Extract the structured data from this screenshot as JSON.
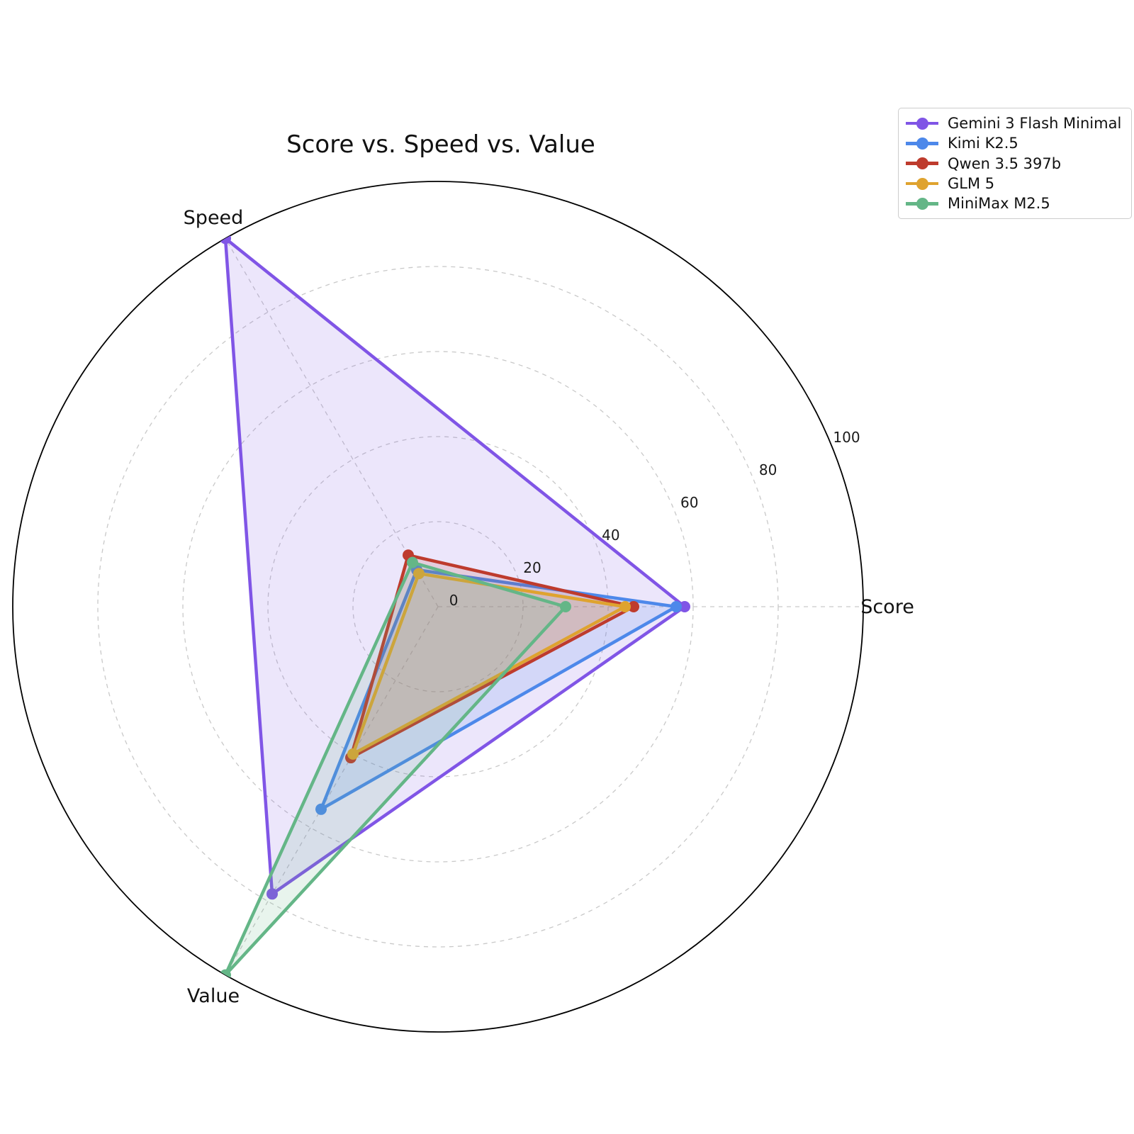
{
  "chart_data": {
    "type": "radar",
    "title": "Score vs. Speed vs. Value",
    "axes": [
      "Score",
      "Speed",
      "Value"
    ],
    "axis_angles_deg": [
      0,
      120,
      240
    ],
    "r_ticks": [
      0,
      20,
      40,
      60,
      80,
      100
    ],
    "r_max": 100,
    "r_tick_label_angle_deg": 22.5,
    "grid": "dashed gray circles and radial spokes",
    "legend_position": "upper right",
    "series": [
      {
        "name": "Gemini 3 Flash Minimal",
        "color": "#8055E6",
        "values": [
          58,
          100,
          78
        ]
      },
      {
        "name": "Kimi K2.5",
        "color": "#4D88EA",
        "values": [
          56,
          10,
          55
        ]
      },
      {
        "name": "Qwen 3.5 397b",
        "color": "#BE3B2D",
        "values": [
          46,
          14,
          41
        ]
      },
      {
        "name": "GLM 5",
        "color": "#DFA32F",
        "values": [
          44,
          9,
          40
        ]
      },
      {
        "name": "MiniMax M2.5",
        "color": "#64B687",
        "values": [
          30,
          12,
          100
        ]
      }
    ],
    "style": {
      "outer_circle_color": "#000000",
      "grid_color": "#c9c9c9",
      "tick_label_color": "#1a1a1a",
      "axis_label_color": "#111111",
      "fill_opacity": 0.15
    }
  }
}
